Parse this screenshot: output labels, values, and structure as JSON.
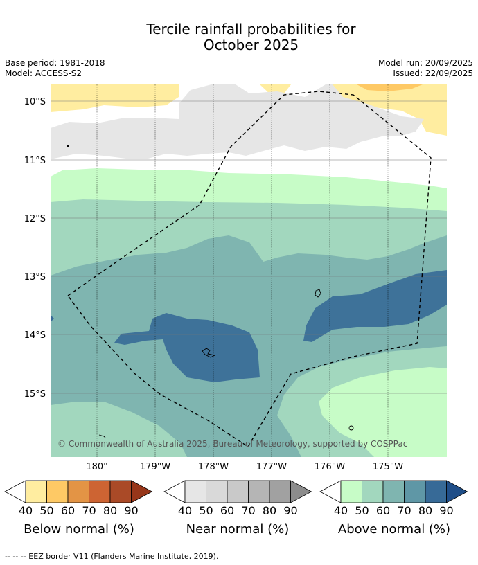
{
  "title_line1": "Tercile rainfall probabilities for",
  "title_line2": "October 2025",
  "base_period": "Base period: 1981-2018",
  "model": "Model: ACCESS-S2",
  "model_run": "Model run: 20/09/2025",
  "issued": "Issued: 22/09/2025",
  "lat_labels": [
    "10°S",
    "11°S",
    "12°S",
    "13°S",
    "14°S",
    "15°S"
  ],
  "lon_labels": [
    "180°",
    "179°W",
    "178°W",
    "177°W",
    "176°W",
    "175°W"
  ],
  "copyright": "© Commonwealth of Australia 2025, Bureau of Meteorology, supported by COSPPac",
  "colorbars": [
    {
      "label": "Below normal (%)",
      "ticks": [
        "40",
        "50",
        "60",
        "70",
        "80",
        "90"
      ],
      "colors": [
        "#ffffff",
        "#ffeda0",
        "#fec965",
        "#e39445",
        "#cd6433",
        "#aa4a27",
        "#97361a"
      ]
    },
    {
      "label": "Near normal (%)",
      "ticks": [
        "40",
        "50",
        "60",
        "70",
        "80",
        "90"
      ],
      "colors": [
        "#ffffff",
        "#e6e6e6",
        "#d9d9d9",
        "#c9c9c9",
        "#b5b5b5",
        "#a1a1a1",
        "#8c8c8c"
      ]
    },
    {
      "label": "Above normal (%)",
      "ticks": [
        "40",
        "50",
        "60",
        "70",
        "80",
        "90"
      ],
      "colors": [
        "#ffffff",
        "#c7fcc7",
        "#a2d7be",
        "#7fb5b0",
        "#5f97a6",
        "#376a97",
        "#1f4e88"
      ]
    }
  ],
  "footer": "-- -- -- EEZ border V11 (Flanders Marine Institute, 2019)."
}
